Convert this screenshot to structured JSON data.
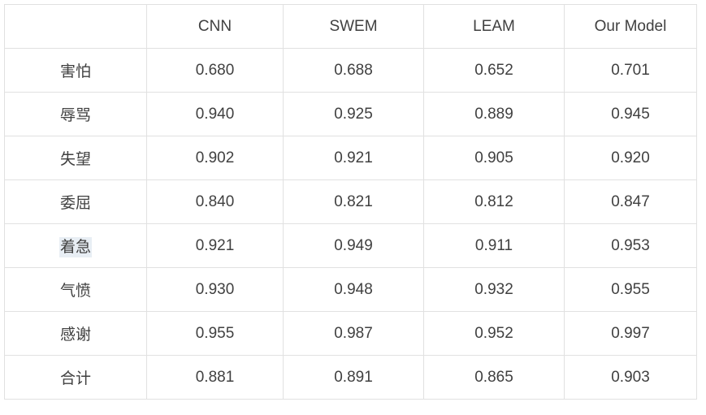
{
  "chart_data": {
    "type": "table",
    "title": "",
    "columns": [
      "",
      "CNN",
      "SWEM",
      "LEAM",
      "Our Model"
    ],
    "rows": [
      {
        "label": "害怕",
        "values": [
          "0.680",
          "0.688",
          "0.652",
          "0.701"
        ]
      },
      {
        "label": "辱骂",
        "values": [
          "0.940",
          "0.925",
          "0.889",
          "0.945"
        ]
      },
      {
        "label": "失望",
        "values": [
          "0.902",
          "0.921",
          "0.905",
          "0.920"
        ]
      },
      {
        "label": "委屈",
        "values": [
          "0.840",
          "0.821",
          "0.812",
          "0.847"
        ]
      },
      {
        "label": "着急",
        "values": [
          "0.921",
          "0.949",
          "0.911",
          "0.953"
        ],
        "label_highlighted": true
      },
      {
        "label": "气愤",
        "values": [
          "0.930",
          "0.948",
          "0.932",
          "0.955"
        ]
      },
      {
        "label": "感谢",
        "values": [
          "0.955",
          "0.987",
          "0.952",
          "0.997"
        ]
      },
      {
        "label": "合计",
        "values": [
          "0.881",
          "0.891",
          "0.865",
          "0.903"
        ],
        "accent_value_index": 3
      }
    ],
    "layout_hints": {
      "grid": true,
      "header_row": true,
      "first_column_is_row_labels": true
    },
    "colors": {
      "accent": "#f97b2a",
      "label_highlight": "#e8eef4",
      "border": "#e1e1e1",
      "text": "#404040"
    }
  }
}
